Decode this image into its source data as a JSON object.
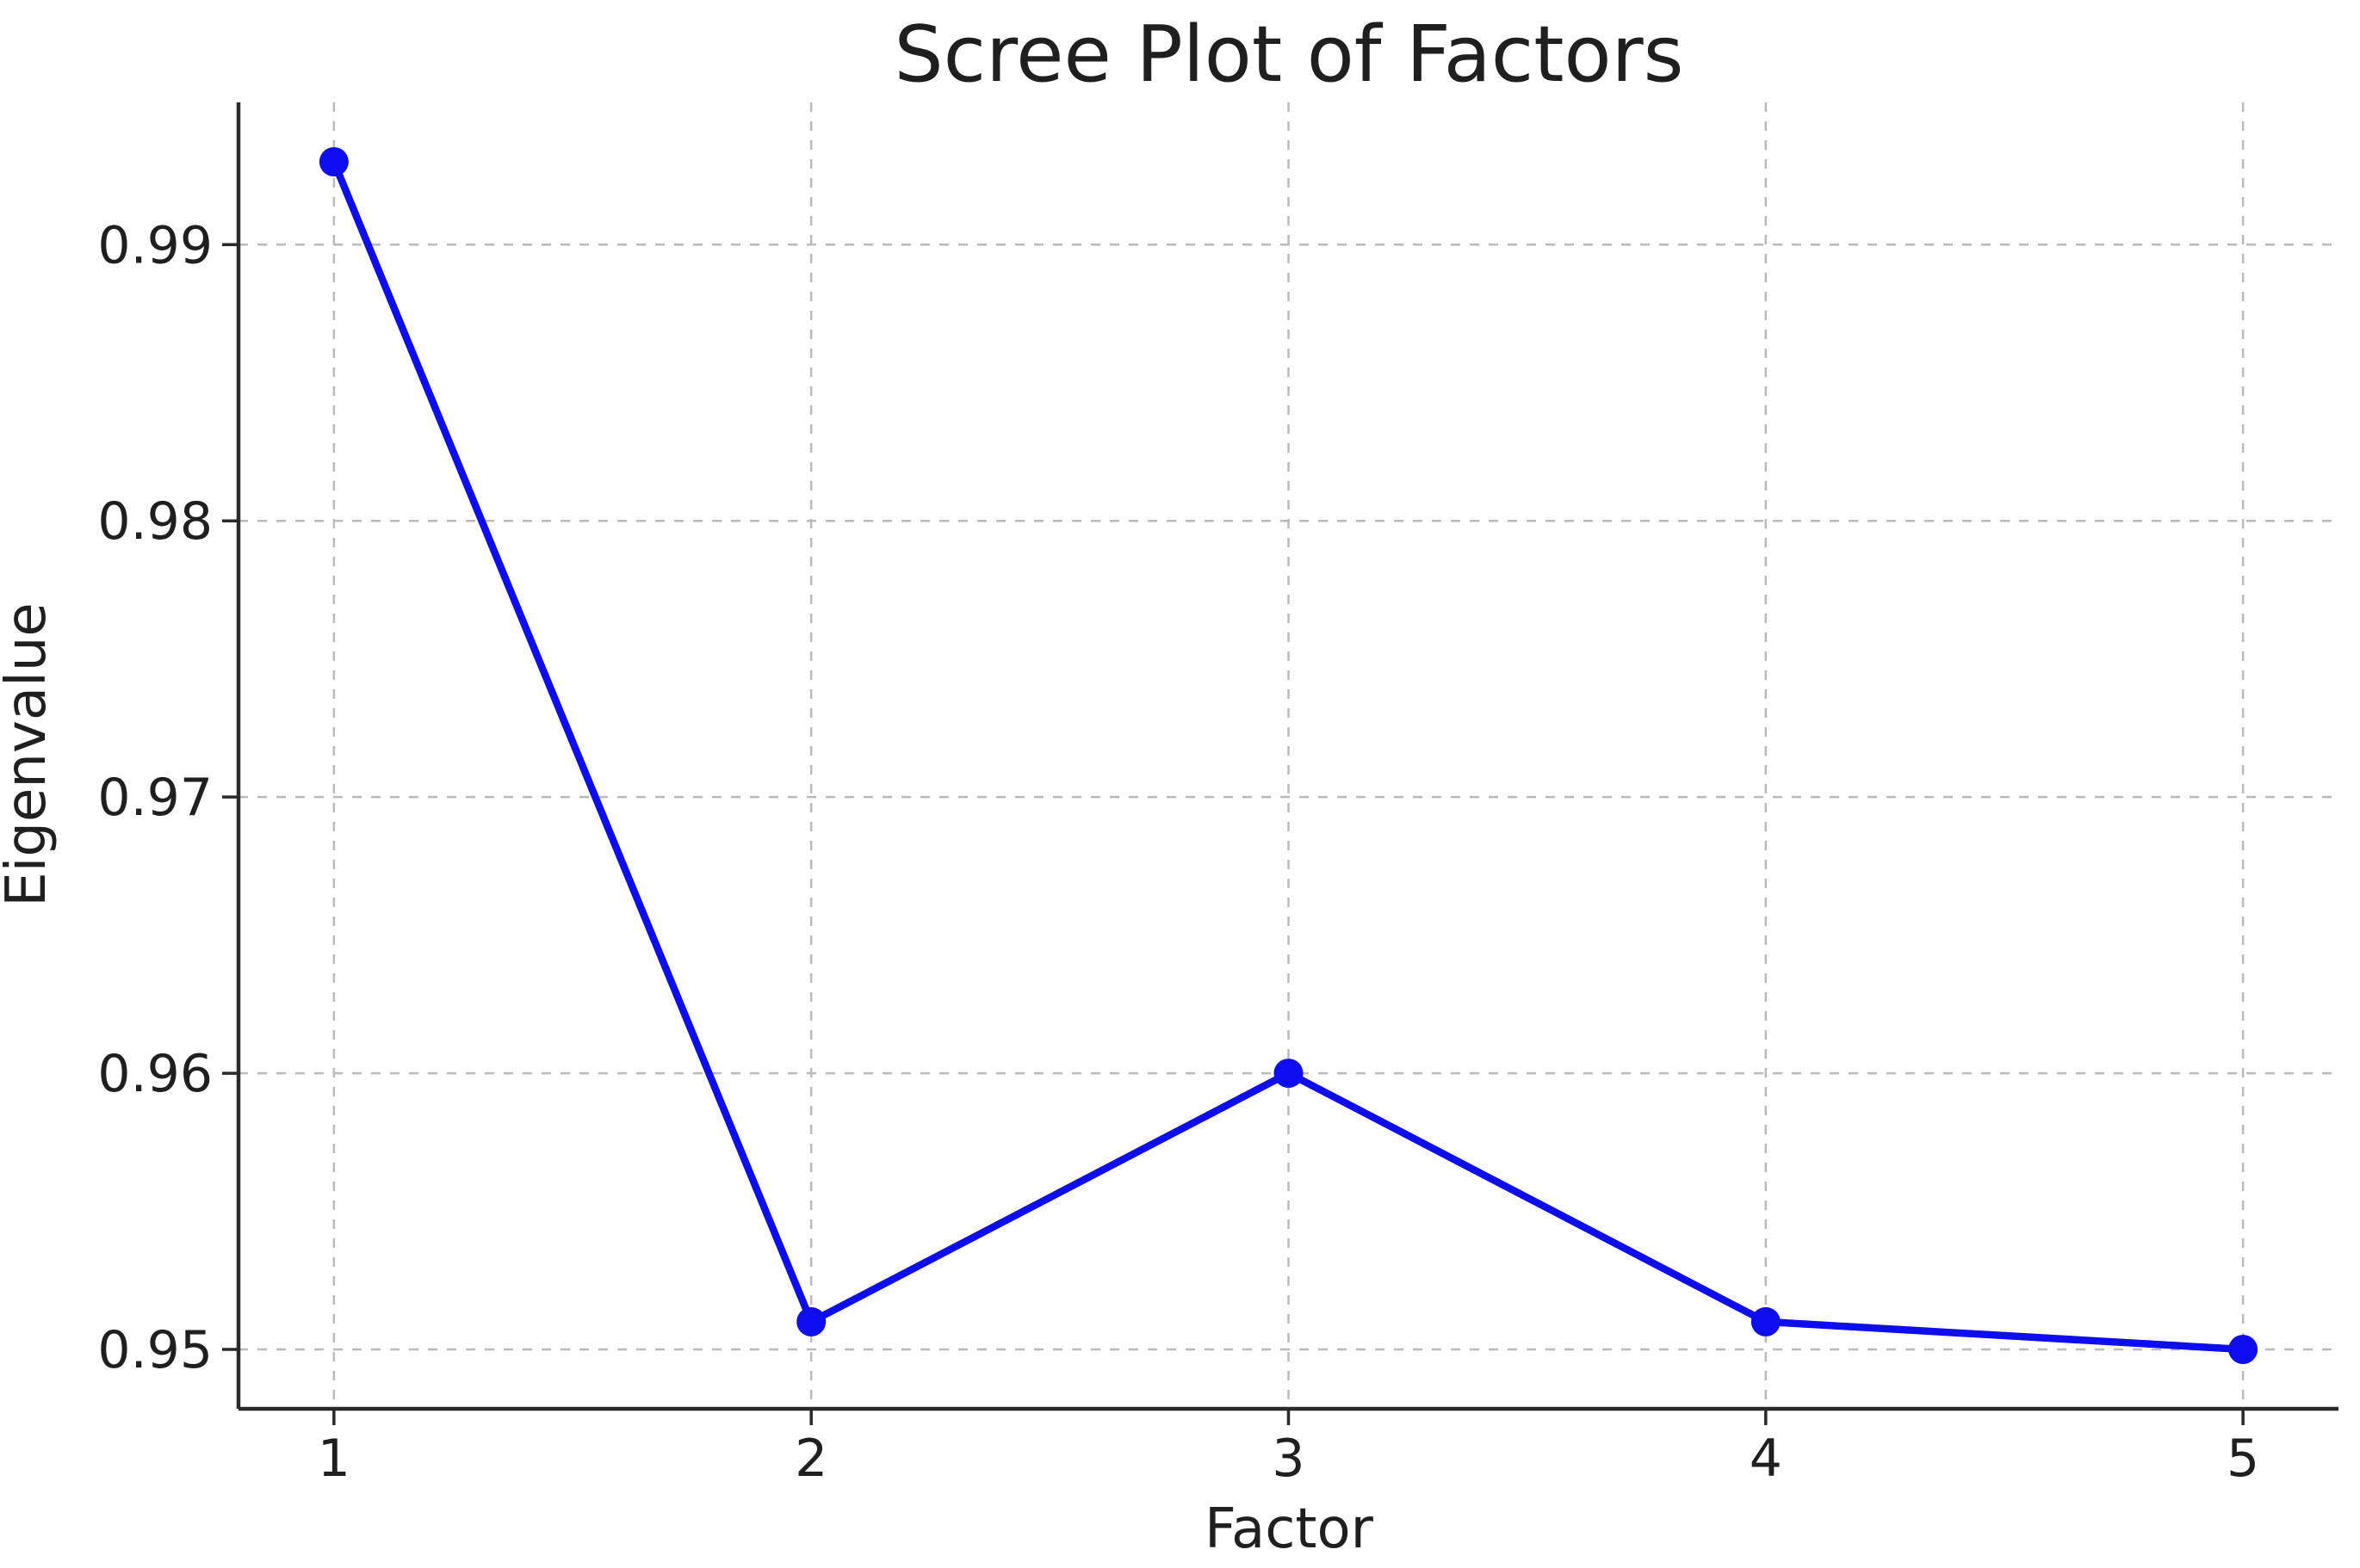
{
  "figure": {
    "background": "#ffffff"
  },
  "chart_data": {
    "type": "line",
    "title": "Scree Plot of Factors",
    "xlabel": "Factor",
    "ylabel": "Eigenvalue",
    "x": [
      1,
      2,
      3,
      4,
      5
    ],
    "y": [
      0.993,
      0.951,
      0.96,
      0.951,
      0.95
    ],
    "xlim": [
      0.8,
      5.2
    ],
    "ylim": [
      0.94785,
      0.99515
    ],
    "xticks": {
      "values": [
        1,
        2,
        3,
        4,
        5
      ],
      "labels": [
        "1",
        "2",
        "3",
        "4",
        "5"
      ]
    },
    "yticks": {
      "values": [
        0.95,
        0.96,
        0.97,
        0.98,
        0.99
      ],
      "labels": [
        "0.95",
        "0.96",
        "0.97",
        "0.98",
        "0.99"
      ]
    },
    "grid": true,
    "grid_style": "dashed",
    "legend": false,
    "style": {
      "line_color": "#0d0df0",
      "marker": "circle",
      "marker_color": "#0d0df0",
      "grid_color": "#bbbbbb",
      "spine_color": "#2a2a2a",
      "tick_color": "#2a2a2a",
      "text_color": "#1f1f1f"
    }
  }
}
